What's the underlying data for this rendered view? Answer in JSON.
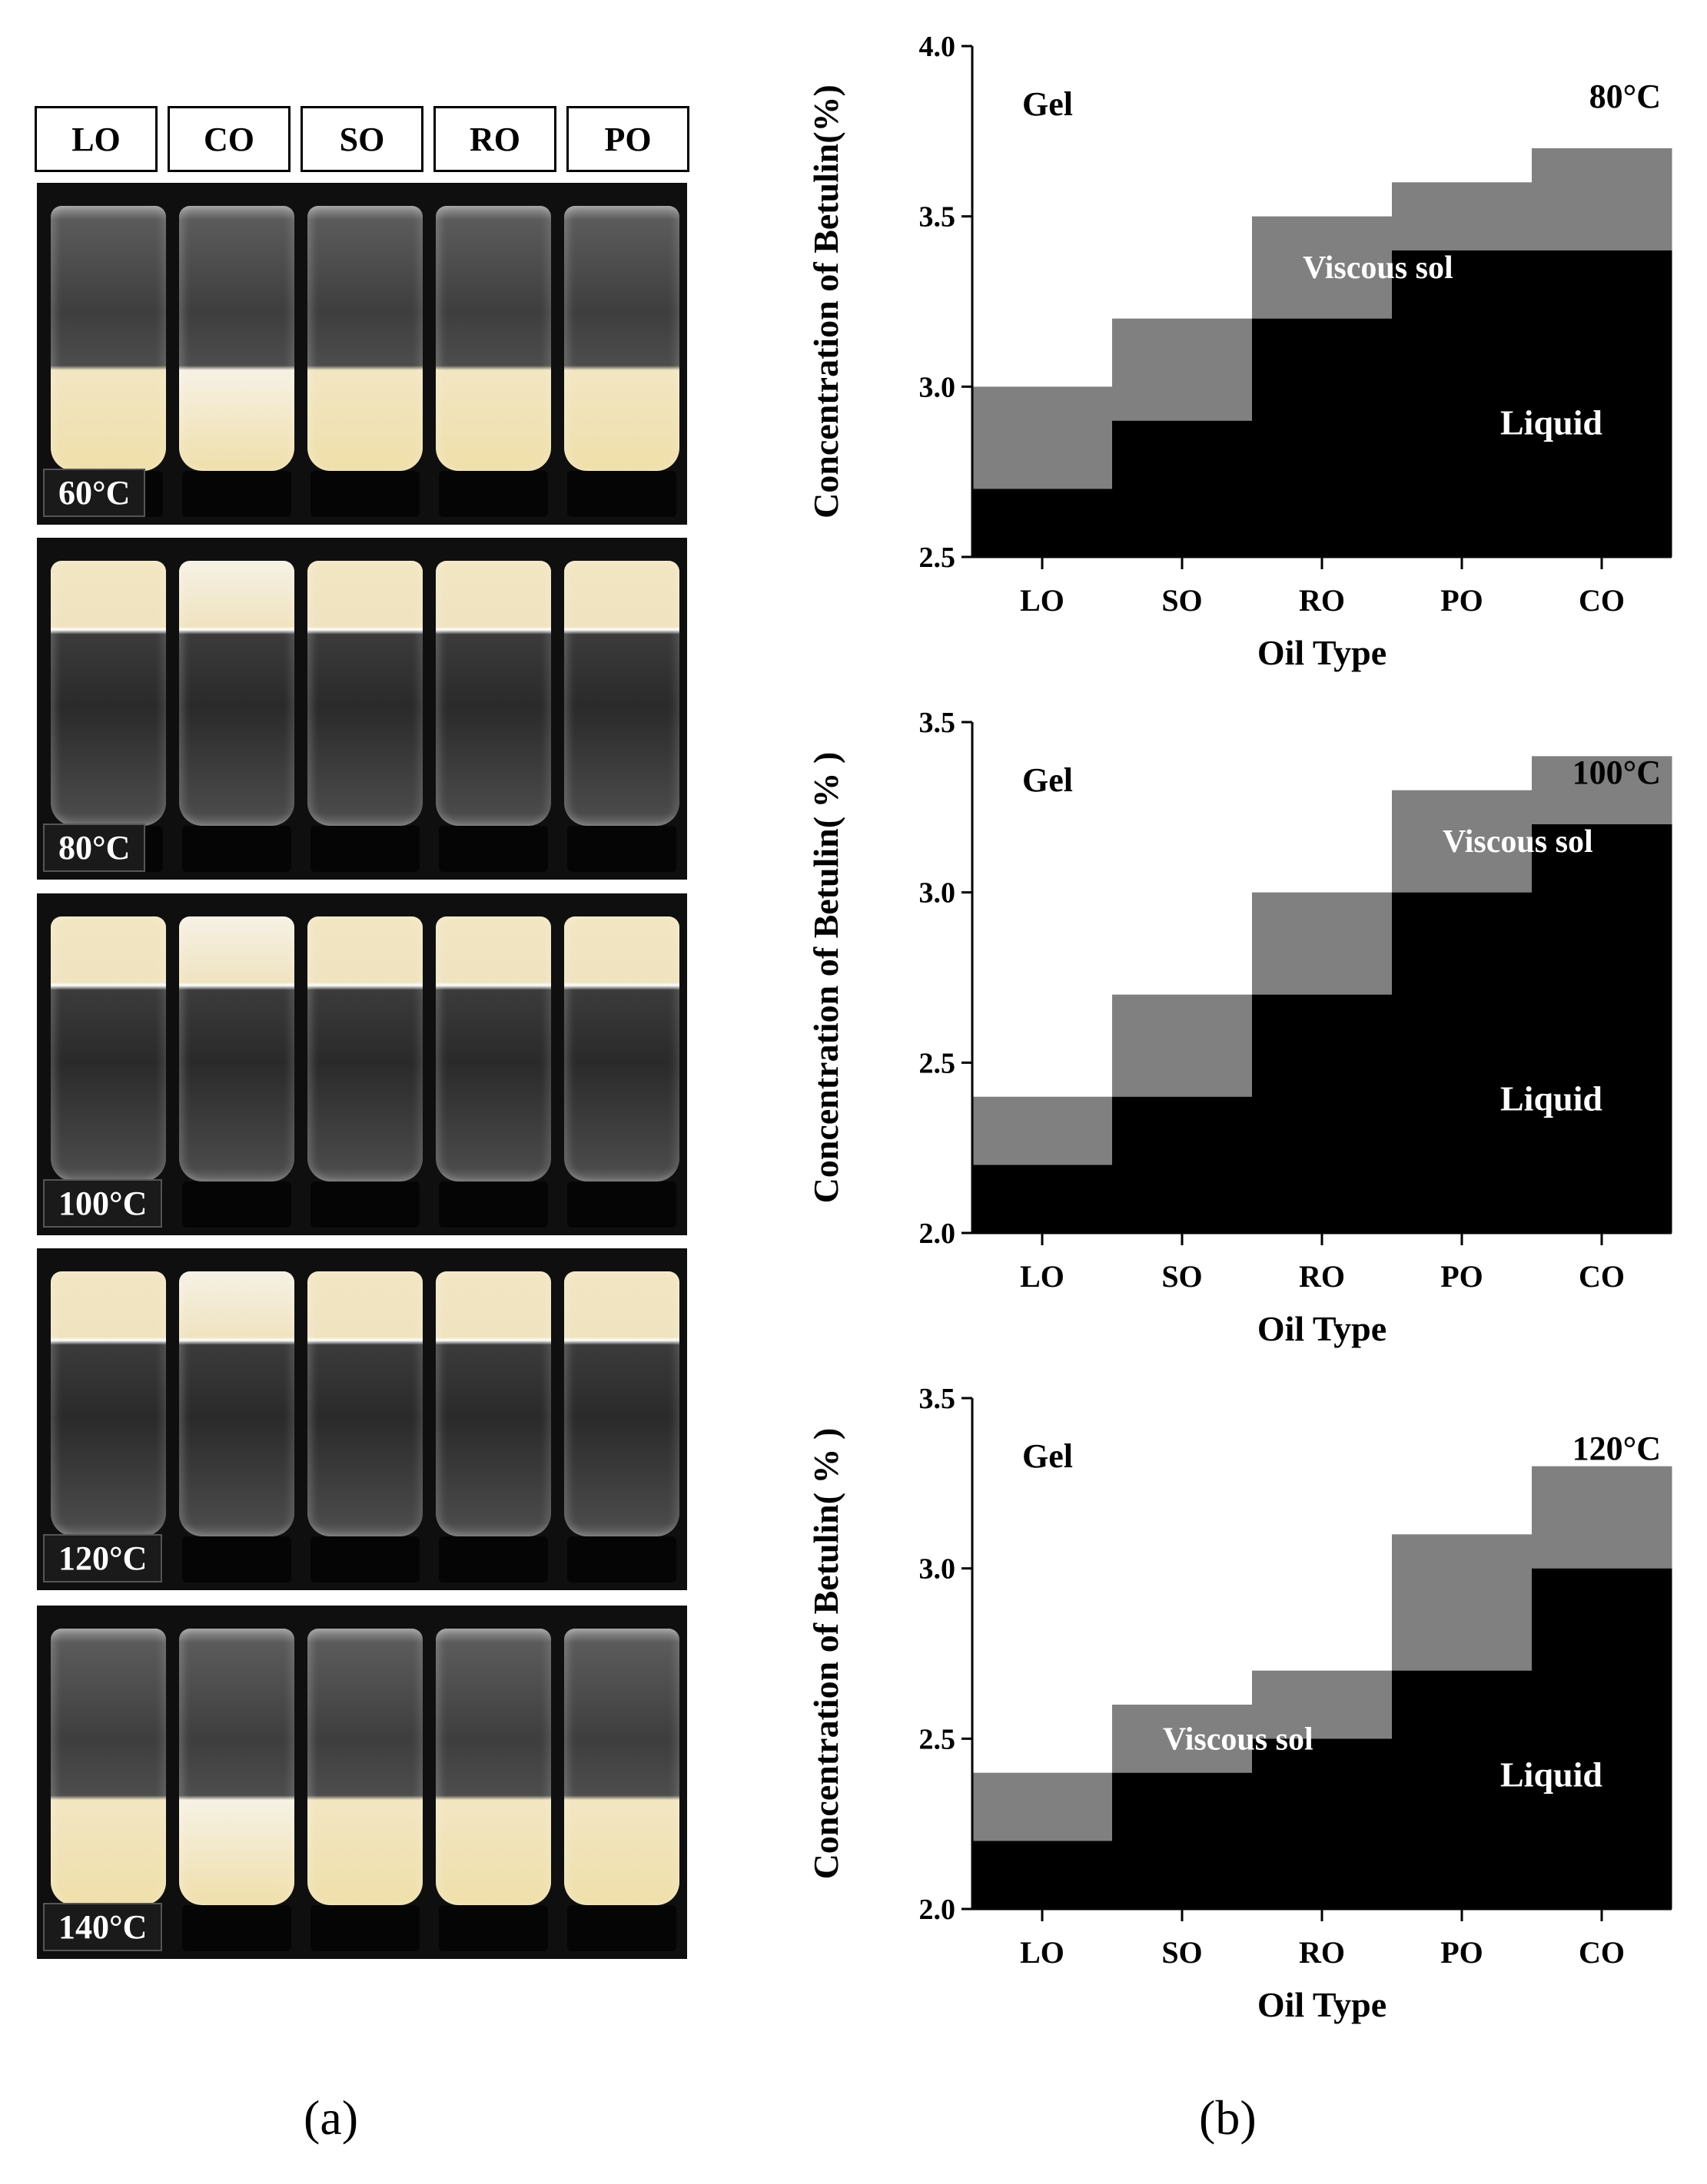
{
  "panel_a": {
    "oil_labels": [
      "LO",
      "CO",
      "SO",
      "RO",
      "PO"
    ],
    "photos": [
      {
        "temperature": "60°C",
        "state": "gel-bottom"
      },
      {
        "temperature": "80°C",
        "state": "gel-top"
      },
      {
        "temperature": "100°C",
        "state": "gel-top"
      },
      {
        "temperature": "120°C",
        "state": "gel-top"
      },
      {
        "temperature": "140°C",
        "state": "gel-bottom"
      }
    ],
    "caption": "(a)"
  },
  "panel_b": {
    "caption": "(b)"
  },
  "colors": {
    "liquid": "#000000",
    "viscous_sol": "#808080",
    "gel": "#ffffff",
    "photo_background": "#0f0f0f"
  },
  "chart_data": [
    {
      "type": "area",
      "title": "80°C",
      "xlabel": "Oil Type",
      "ylabel": "Concentration of Betulin(%)",
      "categories": [
        "LO",
        "SO",
        "RO",
        "PO",
        "CO"
      ],
      "ylim": [
        2.5,
        4.0
      ],
      "yticks": [
        "2.5",
        "3.0",
        "3.5",
        "4.0"
      ],
      "liquid_upper": [
        2.7,
        2.9,
        3.2,
        3.4,
        3.4
      ],
      "viscous_sol_upper": [
        3.0,
        3.2,
        3.5,
        3.6,
        3.7
      ],
      "region_labels": {
        "gel": "Gel",
        "viscous_sol": "Viscous sol",
        "liquid": "Liquid"
      }
    },
    {
      "type": "area",
      "title": "100°C",
      "xlabel": "Oil Type",
      "ylabel": "Concentration of Betulin( % )",
      "categories": [
        "LO",
        "SO",
        "RO",
        "PO",
        "CO"
      ],
      "ylim": [
        2.0,
        3.5
      ],
      "yticks": [
        "2.0",
        "2.5",
        "3.0",
        "3.5"
      ],
      "liquid_upper": [
        2.2,
        2.4,
        2.7,
        3.0,
        3.2
      ],
      "viscous_sol_upper": [
        2.4,
        2.7,
        3.0,
        3.3,
        3.4
      ],
      "region_labels": {
        "gel": "Gel",
        "viscous_sol": "Viscous sol",
        "liquid": "Liquid"
      }
    },
    {
      "type": "area",
      "title": "120°C",
      "xlabel": "Oil Type",
      "ylabel": "Concentration of Betulin( % )",
      "categories": [
        "LO",
        "SO",
        "RO",
        "PO",
        "CO"
      ],
      "ylim": [
        2.0,
        3.5
      ],
      "yticks": [
        "2.0",
        "2.5",
        "3.0",
        "3.5"
      ],
      "liquid_upper": [
        2.2,
        2.4,
        2.5,
        2.7,
        3.0
      ],
      "viscous_sol_upper": [
        2.4,
        2.6,
        2.7,
        3.1,
        3.3
      ],
      "region_labels": {
        "gel": "Gel",
        "viscous_sol": "Viscous sol",
        "liquid": "Liquid"
      }
    }
  ]
}
